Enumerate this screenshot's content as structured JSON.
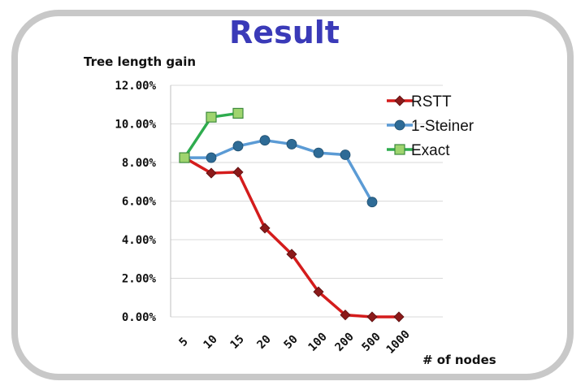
{
  "page": {
    "title": "Result"
  },
  "chart_data": {
    "type": "line",
    "title": "Result",
    "ylabel": "Tree length gain",
    "xlabel": "# of nodes",
    "categories": [
      "5",
      "10",
      "15",
      "20",
      "50",
      "100",
      "200",
      "500",
      "1000"
    ],
    "ylim": [
      0,
      12
    ],
    "y_ticks": [
      "0.00%",
      "2.00%",
      "4.00%",
      "6.00%",
      "8.00%",
      "10.00%",
      "12.00%"
    ],
    "grid": true,
    "legend_position": "top-right",
    "series": [
      {
        "name": "RSTT",
        "color": "#d41c1c",
        "marker": "diamond",
        "marker_color": "#8b1a1a",
        "values": [
          8.25,
          7.45,
          7.5,
          4.6,
          3.25,
          1.3,
          0.1,
          0.0,
          0.0
        ]
      },
      {
        "name": "1-Steiner",
        "color": "#5b9bd5",
        "marker": "circle",
        "marker_color": "#2e6b96",
        "values": [
          8.25,
          8.25,
          8.85,
          9.15,
          8.95,
          8.5,
          8.4,
          5.95,
          null
        ]
      },
      {
        "name": "Exact",
        "color": "#2eac4e",
        "marker": "square",
        "marker_color": "#9fd46e",
        "values": [
          8.25,
          10.35,
          10.55,
          null,
          null,
          null,
          null,
          null,
          null
        ]
      }
    ]
  }
}
